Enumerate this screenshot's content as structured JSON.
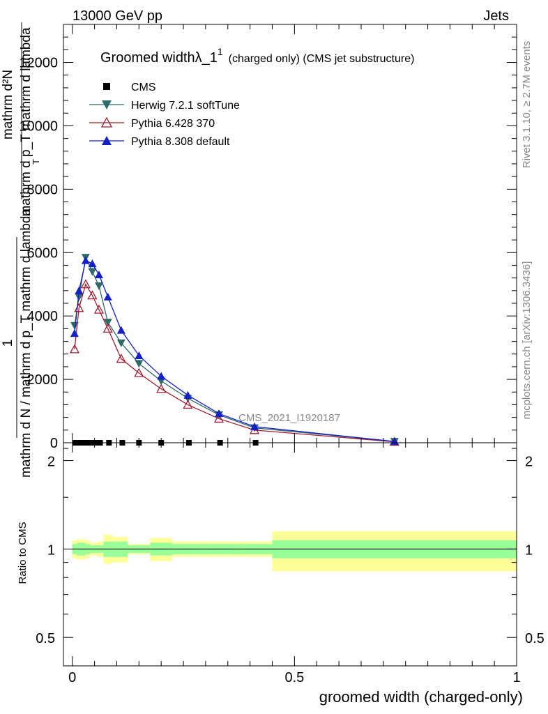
{
  "header": {
    "left": "13000 GeV pp",
    "right": "Jets"
  },
  "side_labels": {
    "rivet": "Rivet 3.1.10, ≥ 2.7M events",
    "mcplots": "mcplots.cern.ch [arXiv:1306.3436]"
  },
  "watermark": "CMS_2021_I1920187",
  "chart_data": {
    "type": "line",
    "title_main": "Groomed widthλ_1",
    "title_sup": "1",
    "title_sub": "(charged only) (CMS jet substructure)",
    "ylabel_top": {
      "num": "mathrm d²N",
      "den": "mathrm d p_T mathrm d lambda",
      "den_sub": "T"
    },
    "ylabel_bottom": {
      "num": "1",
      "den": "mathrm d N / mathrm d p_T mathrm d lambda"
    },
    "xlabel": "groomed width (charged-only)",
    "ratio_ylabel": "Ratio to CMS",
    "xlim": [
      -0.02,
      1.0
    ],
    "ylim": [
      0,
      13200
    ],
    "ratio_ylim": [
      0.4,
      2.3
    ],
    "ratio_ylog": true,
    "x_ticks": [
      0,
      0.5,
      1
    ],
    "x_tick_labels": [
      "0",
      "0.5",
      "1"
    ],
    "y_ticks": [
      0,
      2000,
      4000,
      6000,
      8000,
      10000,
      12000
    ],
    "y_tick_labels": [
      "0",
      "2000",
      "4000",
      "6000",
      "8000",
      "10000",
      "12000"
    ],
    "ratio_ticks": [
      0.5,
      1,
      2
    ],
    "ratio_tick_labels": [
      "0.5",
      "1",
      "2"
    ],
    "legend_position": "top-left",
    "series": [
      {
        "name": "CMS",
        "marker": "square",
        "color": "#000000",
        "x": [
          0.0075,
          0.0175,
          0.0275,
          0.0375,
          0.05,
          0.0625,
          0.0825,
          0.1125,
          0.15,
          0.2,
          0.2625,
          0.3325,
          0.4125,
          0.725
        ],
        "y": [
          0,
          0,
          0,
          0,
          0,
          0,
          0,
          0,
          0,
          0,
          0,
          0,
          0,
          0
        ]
      },
      {
        "name": "Herwig 7.2.1 softTune",
        "marker": "triangle-down",
        "color": "#2f6a69",
        "x": [
          0.005,
          0.015,
          0.03,
          0.045,
          0.06,
          0.08,
          0.11,
          0.15,
          0.2,
          0.26,
          0.33,
          0.41,
          0.725
        ],
        "y": [
          3700,
          4600,
          5850,
          5400,
          4950,
          3800,
          3150,
          2500,
          1950,
          1400,
          880,
          470,
          40
        ]
      },
      {
        "name": "Pythia 6.428 370",
        "marker": "triangle-open",
        "color": "#a01c30",
        "x": [
          0.005,
          0.015,
          0.03,
          0.045,
          0.06,
          0.08,
          0.11,
          0.15,
          0.2,
          0.26,
          0.33,
          0.41,
          0.725
        ],
        "y": [
          2950,
          4250,
          5000,
          4650,
          4200,
          3600,
          2650,
          2200,
          1700,
          1200,
          760,
          400,
          30
        ]
      },
      {
        "name": "Pythia 8.308 default",
        "marker": "triangle-up",
        "color": "#1420c8",
        "x": [
          0.005,
          0.015,
          0.03,
          0.045,
          0.06,
          0.08,
          0.11,
          0.15,
          0.2,
          0.26,
          0.33,
          0.41,
          0.725
        ],
        "y": [
          3450,
          4800,
          5750,
          5650,
          5300,
          4600,
          3550,
          2750,
          2100,
          1500,
          920,
          510,
          40
        ]
      }
    ],
    "ratio_bands": {
      "inner_color": "#99ff99",
      "outer_color": "#ffff99",
      "bins": [
        {
          "x0": 0.0,
          "x1": 0.01,
          "inner": [
            0.96,
            1.04
          ],
          "outer": [
            0.93,
            1.07
          ]
        },
        {
          "x0": 0.01,
          "x1": 0.02,
          "inner": [
            0.95,
            1.05
          ],
          "outer": [
            0.92,
            1.08
          ]
        },
        {
          "x0": 0.02,
          "x1": 0.03,
          "inner": [
            0.95,
            1.05
          ],
          "outer": [
            0.92,
            1.08
          ]
        },
        {
          "x0": 0.03,
          "x1": 0.04,
          "inner": [
            0.96,
            1.04
          ],
          "outer": [
            0.93,
            1.07
          ]
        },
        {
          "x0": 0.04,
          "x1": 0.055,
          "inner": [
            0.97,
            1.03
          ],
          "outer": [
            0.95,
            1.05
          ]
        },
        {
          "x0": 0.055,
          "x1": 0.07,
          "inner": [
            0.97,
            1.03
          ],
          "outer": [
            0.94,
            1.06
          ]
        },
        {
          "x0": 0.07,
          "x1": 0.09,
          "inner": [
            0.94,
            1.06
          ],
          "outer": [
            0.89,
            1.12
          ]
        },
        {
          "x0": 0.09,
          "x1": 0.125,
          "inner": [
            0.94,
            1.06
          ],
          "outer": [
            0.9,
            1.1
          ]
        },
        {
          "x0": 0.125,
          "x1": 0.175,
          "inner": [
            0.97,
            1.03
          ],
          "outer": [
            0.96,
            1.04
          ]
        },
        {
          "x0": 0.175,
          "x1": 0.225,
          "inner": [
            0.95,
            1.05
          ],
          "outer": [
            0.91,
            1.09
          ]
        },
        {
          "x0": 0.225,
          "x1": 0.3,
          "inner": [
            0.96,
            1.04
          ],
          "outer": [
            0.94,
            1.06
          ]
        },
        {
          "x0": 0.3,
          "x1": 0.375,
          "inner": [
            0.96,
            1.04
          ],
          "outer": [
            0.94,
            1.06
          ]
        },
        {
          "x0": 0.375,
          "x1": 0.45,
          "inner": [
            0.96,
            1.04
          ],
          "outer": [
            0.94,
            1.06
          ]
        },
        {
          "x0": 0.45,
          "x1": 1.0,
          "inner": [
            0.93,
            1.07
          ],
          "outer": [
            0.84,
            1.15
          ]
        }
      ]
    }
  }
}
